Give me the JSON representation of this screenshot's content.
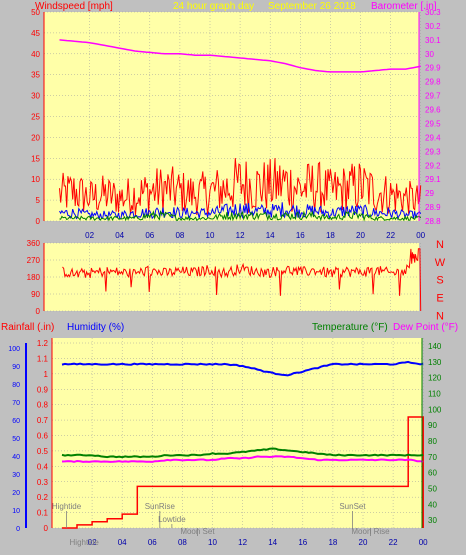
{
  "header": {
    "windspeed_title": "Windspeed [mph]",
    "graph_title": "24 hour graph day",
    "date": "September 26 2018",
    "barometer_title": "Barometer [.in]"
  },
  "colors": {
    "bg": "#c0c0c0",
    "plot_bg": "#ffffa8",
    "grid": "#9e9e9e",
    "wind_speed": "#ff0000",
    "wind_avg": "#0000ff",
    "wind_min": "#008000",
    "barometer": "#ff00ff",
    "wind_dir": "#ff0000",
    "rain": "#ff0000",
    "humidity": "#0000ff",
    "temperature": "#008000",
    "dew_point": "#ff00ff",
    "yellow_text": "#ffff00",
    "left_axis": "#ff0000",
    "right_axis": "#ff00ff"
  },
  "x_ticks": [
    "02",
    "04",
    "06",
    "08",
    "10",
    "12",
    "14",
    "16",
    "18",
    "20",
    "22",
    "00"
  ],
  "chart_data": [
    {
      "type": "line",
      "title": "24 hour graph day September 26 2018",
      "ylabel": "Windspeed [mph]",
      "y2label": "Barometer [.in]",
      "ylim": [
        0,
        50
      ],
      "y2lim": [
        28.8,
        30.3
      ],
      "y_ticks": [
        "0",
        "5",
        "10",
        "15",
        "20",
        "25",
        "30",
        "35",
        "40",
        "45",
        "50"
      ],
      "y2_ticks": [
        "28.8",
        "28.9",
        "29",
        "29.1",
        "29.2",
        "29.3",
        "29.4",
        "29.5",
        "29.6",
        "29.7",
        "29.8",
        "29.9",
        "30",
        "30.1",
        "30.2",
        "30.3"
      ],
      "x_hours": [
        0,
        1,
        2,
        3,
        4,
        5,
        6,
        7,
        8,
        9,
        10,
        11,
        12,
        13,
        14,
        15,
        16,
        17,
        18,
        19,
        20,
        21,
        22,
        23,
        24
      ],
      "series": [
        {
          "role": "gust",
          "values": [
            9,
            10,
            8,
            9,
            8,
            9,
            10,
            11,
            10,
            9,
            10,
            11,
            13,
            12,
            12,
            13,
            11,
            12,
            10,
            11,
            12,
            10,
            9,
            8,
            7
          ]
        },
        {
          "role": "average",
          "values": [
            4,
            4,
            3,
            3,
            3,
            4,
            4,
            5,
            4,
            4,
            4,
            5,
            6,
            5,
            5,
            6,
            5,
            5,
            4,
            5,
            5,
            4,
            4,
            3,
            3
          ]
        },
        {
          "role": "minimum",
          "values": [
            1,
            1,
            1,
            1,
            1,
            1,
            2,
            2,
            1,
            1,
            1,
            2,
            2,
            2,
            2,
            2,
            2,
            2,
            1,
            2,
            2,
            1,
            1,
            1,
            1
          ]
        },
        {
          "role": "barometer",
          "axis": "y2",
          "values": [
            30.1,
            30.09,
            30.08,
            30.06,
            30.04,
            30.02,
            30.01,
            30.0,
            30.0,
            29.99,
            29.99,
            29.98,
            29.97,
            29.96,
            29.95,
            29.93,
            29.9,
            29.88,
            29.87,
            29.87,
            29.87,
            29.88,
            29.89,
            29.89,
            29.91
          ]
        }
      ]
    },
    {
      "type": "line",
      "ylim": [
        0,
        360
      ],
      "y_ticks": [
        "0",
        "90",
        "180",
        "270",
        "360"
      ],
      "side_labels": [
        "N",
        "W",
        "S",
        "E",
        "N"
      ],
      "series": [
        {
          "role": "wind_direction",
          "values": [
            215,
            195,
            200,
            210,
            205,
            200,
            215,
            200,
            210,
            205,
            220,
            200,
            225,
            210,
            205,
            220,
            205,
            215,
            200,
            210,
            205,
            215,
            200,
            210,
            330
          ]
        }
      ]
    },
    {
      "type": "line",
      "left_title": "Rainfall (.in)",
      "humidity_title": "Humidity (%)",
      "temperature_title": "Temperature (°F)",
      "dewpoint_title": "Dew Point (°F)",
      "rain_ticks": [
        "0",
        "0.1",
        "0.2",
        "0.3",
        "0.4",
        "0.5",
        "0.6",
        "0.7",
        "0.8",
        "0.9",
        "1",
        "1.1",
        "1.2"
      ],
      "humidity_ticks": [
        "0",
        "10",
        "20",
        "30",
        "40",
        "50",
        "60",
        "70",
        "80",
        "90",
        "100"
      ],
      "temp_ticks": [
        "30",
        "40",
        "50",
        "60",
        "70",
        "80",
        "90",
        "100",
        "110",
        "120",
        "130",
        "140"
      ],
      "rain_lim": [
        0,
        1.2
      ],
      "temp_lim": [
        25,
        145
      ],
      "x_hours": [
        0,
        1,
        2,
        3,
        4,
        5,
        6,
        7,
        8,
        9,
        10,
        11,
        12,
        13,
        14,
        15,
        16,
        17,
        18,
        19,
        20,
        21,
        22,
        23,
        24
      ],
      "series": [
        {
          "role": "rainfall",
          "values": [
            0,
            0.02,
            0.04,
            0.06,
            0.09,
            0.27,
            0.27,
            0.27,
            0.27,
            0.27,
            0.27,
            0.27,
            0.27,
            0.27,
            0.27,
            0.27,
            0.27,
            0.27,
            0.27,
            0.27,
            0.27,
            0.27,
            0.27,
            0.72,
            0.0
          ]
        },
        {
          "role": "humidity",
          "axis": "humidity",
          "values": [
            91,
            91,
            91,
            91,
            91,
            91,
            91,
            91,
            91,
            91,
            91,
            91,
            90,
            88,
            86,
            85,
            87,
            89,
            91,
            91,
            91,
            91,
            91,
            92,
            91
          ]
        },
        {
          "role": "temperature",
          "axis": "temp",
          "values": [
            71,
            71,
            71,
            70,
            70,
            70,
            70,
            71,
            71,
            71,
            72,
            72,
            73,
            74,
            75,
            74,
            73,
            72,
            71,
            71,
            71,
            71,
            71,
            71,
            71
          ]
        },
        {
          "role": "dew_point",
          "axis": "temp",
          "values": [
            67,
            67,
            67,
            67,
            67,
            67,
            67,
            68,
            68,
            68,
            68,
            69,
            69,
            70,
            70,
            70,
            69,
            68,
            68,
            68,
            68,
            68,
            68,
            68,
            67
          ]
        }
      ],
      "annotations": [
        {
          "text": "Hightide",
          "hour": 0.3,
          "level": "upper"
        },
        {
          "text": "SunRise",
          "hour": 6.5,
          "level": "upper"
        },
        {
          "text": "Lowtide",
          "hour": 7.3,
          "level": "mid"
        },
        {
          "text": "Moon Set",
          "hour": 9.0,
          "level": "lower"
        },
        {
          "text": "SunSet",
          "hour": 19.3,
          "level": "upper"
        },
        {
          "text": "Moon Rise",
          "hour": 20.5,
          "level": "lower"
        },
        {
          "text": "Hightide",
          "hour": 0.5,
          "level": "bottom"
        }
      ]
    }
  ]
}
